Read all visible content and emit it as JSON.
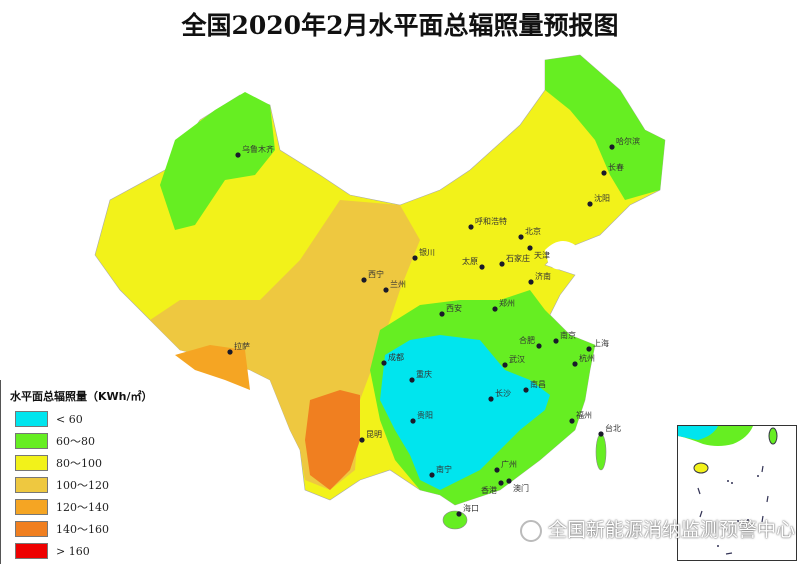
{
  "title": "全国2020年2月水平面总辐照量预报图",
  "legend": {
    "title": "水平面总辐照量（KWh/㎡）",
    "items": [
      {
        "label": "< 60",
        "color": "#00e5ee"
      },
      {
        "label": "60～80",
        "color": "#66ee22"
      },
      {
        "label": "80～100",
        "color": "#f2f21a"
      },
      {
        "label": "100～120",
        "color": "#eec840"
      },
      {
        "label": "120～140",
        "color": "#f5a523"
      },
      {
        "label": "140～160",
        "color": "#f07f20"
      },
      {
        "label": "> 160",
        "color": "#ee0000"
      }
    ]
  },
  "cities": [
    "乌鲁木齐",
    "哈尔滨",
    "长春",
    "沈阳",
    "呼和浩特",
    "北京",
    "天津",
    "银川",
    "太原",
    "石家庄",
    "西宁",
    "兰州",
    "济南",
    "西安",
    "郑州",
    "拉萨",
    "合肥",
    "南京",
    "上海",
    "成都",
    "武汉",
    "杭州",
    "重庆",
    "长沙",
    "南昌",
    "贵阳",
    "昆明",
    "福州",
    "台北",
    "南宁",
    "广州",
    "香港",
    "澳门",
    "海口"
  ],
  "watermark": "全国新能源消纳监测预警中心"
}
